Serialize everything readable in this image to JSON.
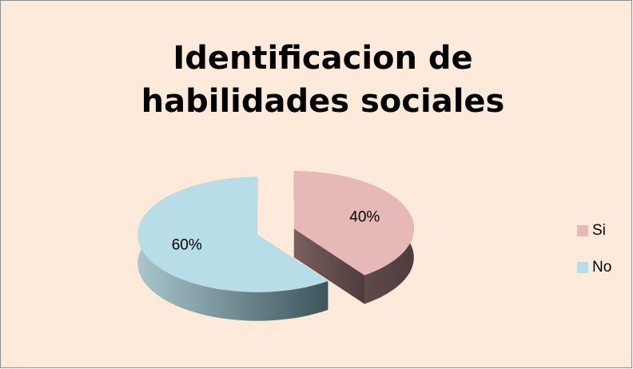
{
  "chart_data": {
    "type": "pie",
    "title": "Identificacion de habilidades sociales",
    "categories": [
      "Si",
      "No"
    ],
    "values": [
      40,
      60
    ],
    "value_labels": [
      "40%",
      "60%"
    ],
    "colors": [
      "#e6b9b8",
      "#b7dde8"
    ],
    "legend": "right"
  }
}
